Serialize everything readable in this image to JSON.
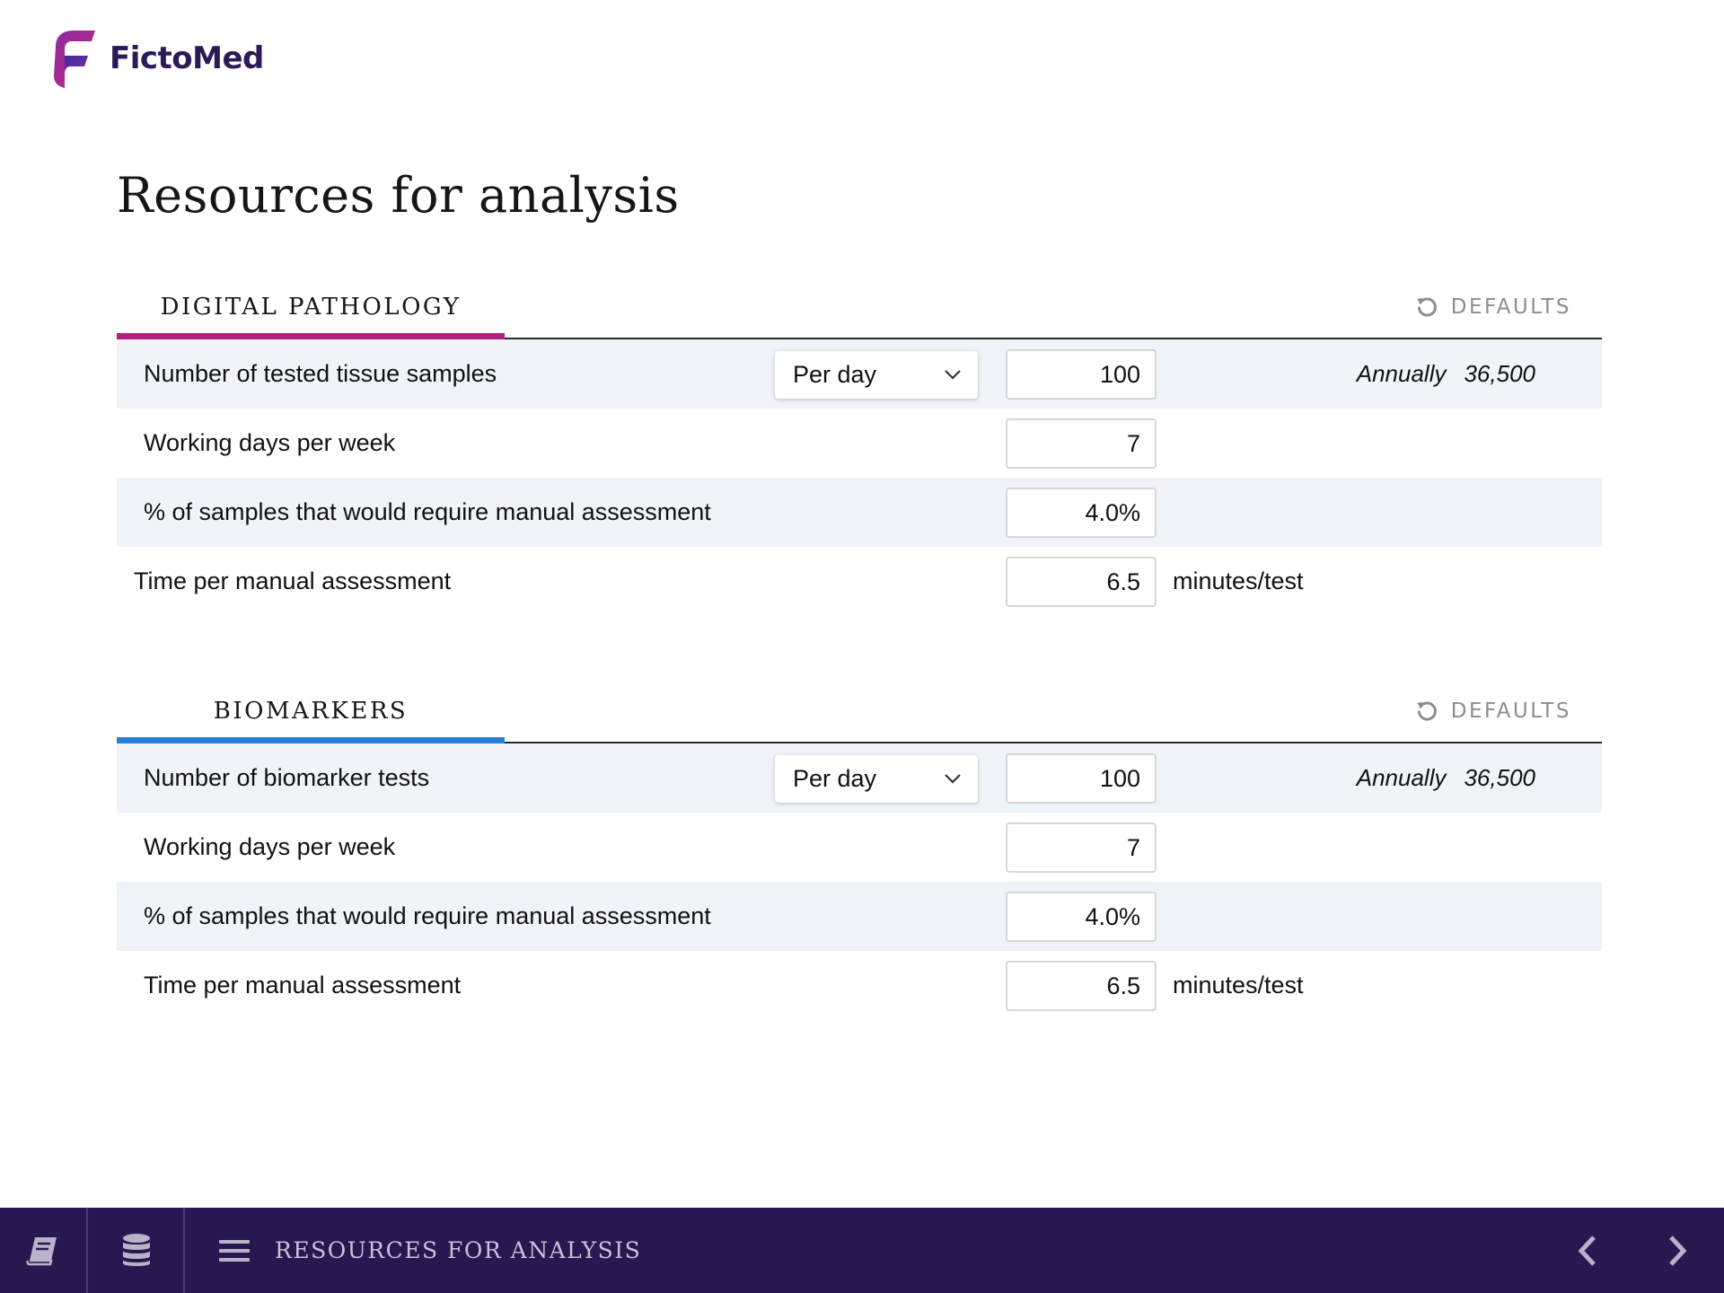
{
  "brand": {
    "name": "FictoMed",
    "logo_colors": [
      "#7b2a9c",
      "#c2287f",
      "#3c3ba8"
    ]
  },
  "page": {
    "title": "Resources for analysis"
  },
  "sections": [
    {
      "title": "DIGITAL PATHOLOGY",
      "accent_color": "#b41e7e",
      "defaults_label": "DEFAULTS",
      "rows": [
        {
          "label": "Number of tested tissue samples",
          "select_value": "Per day",
          "value": "100",
          "annual_label": "Annually",
          "annual_value": "36,500"
        },
        {
          "label": "Working days per week",
          "value": "7"
        },
        {
          "label": "% of samples that would require manual assessment",
          "value": "4.0%"
        },
        {
          "label": "Time per manual assessment",
          "value": "6.5",
          "unit": "minutes/test"
        }
      ]
    },
    {
      "title": "BIOMARKERS",
      "accent_color": "#2a7fd4",
      "defaults_label": "DEFAULTS",
      "rows": [
        {
          "label": "Number of biomarker tests",
          "select_value": "Per day",
          "value": "100",
          "annual_label": "Annually",
          "annual_value": "36,500"
        },
        {
          "label": "Working days per week",
          "value": "7"
        },
        {
          "label": "% of samples that would require manual assessment",
          "value": "4.0%"
        },
        {
          "label": "Time per manual assessment",
          "value": "6.5",
          "unit": "minutes/test"
        }
      ]
    }
  ],
  "bottom_nav": {
    "icons": [
      "book-icon",
      "database-icon",
      "menu-icon",
      "chevron-left-icon",
      "chevron-right-icon"
    ],
    "current_label": "RESOURCES FOR ANALYSIS",
    "background_color": "#281850"
  }
}
